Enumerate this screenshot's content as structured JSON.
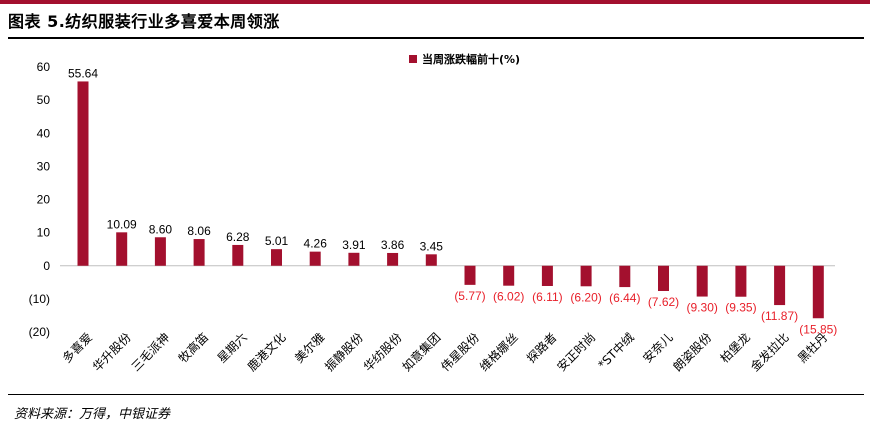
{
  "figure": {
    "title": "图表 5.纺织服装行业多喜爱本周领涨",
    "source": "资料来源：万得，中银证券"
  },
  "colors": {
    "bar": "#a3102e",
    "neg_label": "#e8202a",
    "pos_label": "#000000"
  },
  "chart_data": {
    "type": "bar",
    "title": "",
    "xlabel": "",
    "ylabel": "",
    "ylim": [
      -20,
      60
    ],
    "yticks": [
      60,
      50,
      40,
      30,
      20,
      10,
      0,
      -10,
      -20
    ],
    "ytick_labels": [
      "60",
      "50",
      "40",
      "30",
      "20",
      "10",
      "0",
      "(10)",
      "(20)"
    ],
    "legend": {
      "label": "当周涨跌幅前十(%)",
      "position": "top-right"
    },
    "grid": false,
    "categories": [
      "多喜爱",
      "华升股份",
      "三毛派神",
      "牧高笛",
      "星期六",
      "鹿港文化",
      "美尔雅",
      "振静股份",
      "华纺股份",
      "如意集团",
      "伟星股份",
      "维格娜丝",
      "探路者",
      "安正时尚",
      "*ST中绒",
      "安奈儿",
      "朗姿股份",
      "柏堡龙",
      "金发拉比",
      "黑牡丹"
    ],
    "values": [
      55.64,
      10.09,
      8.6,
      8.06,
      6.28,
      5.01,
      4.26,
      3.91,
      3.86,
      3.45,
      -5.77,
      -6.02,
      -6.11,
      -6.2,
      -6.44,
      -7.62,
      -9.3,
      -9.35,
      -11.87,
      -15.85
    ],
    "value_labels": [
      "55.64",
      "10.09",
      "8.60",
      "8.06",
      "6.28",
      "5.01",
      "4.26",
      "3.91",
      "3.86",
      "3.45",
      "(5.77)",
      "(6.02)",
      "(6.11)",
      "(6.20)",
      "(6.44)",
      "(7.62)",
      "(9.30)",
      "(9.35)",
      "(11.87)",
      "(15.85)"
    ]
  }
}
